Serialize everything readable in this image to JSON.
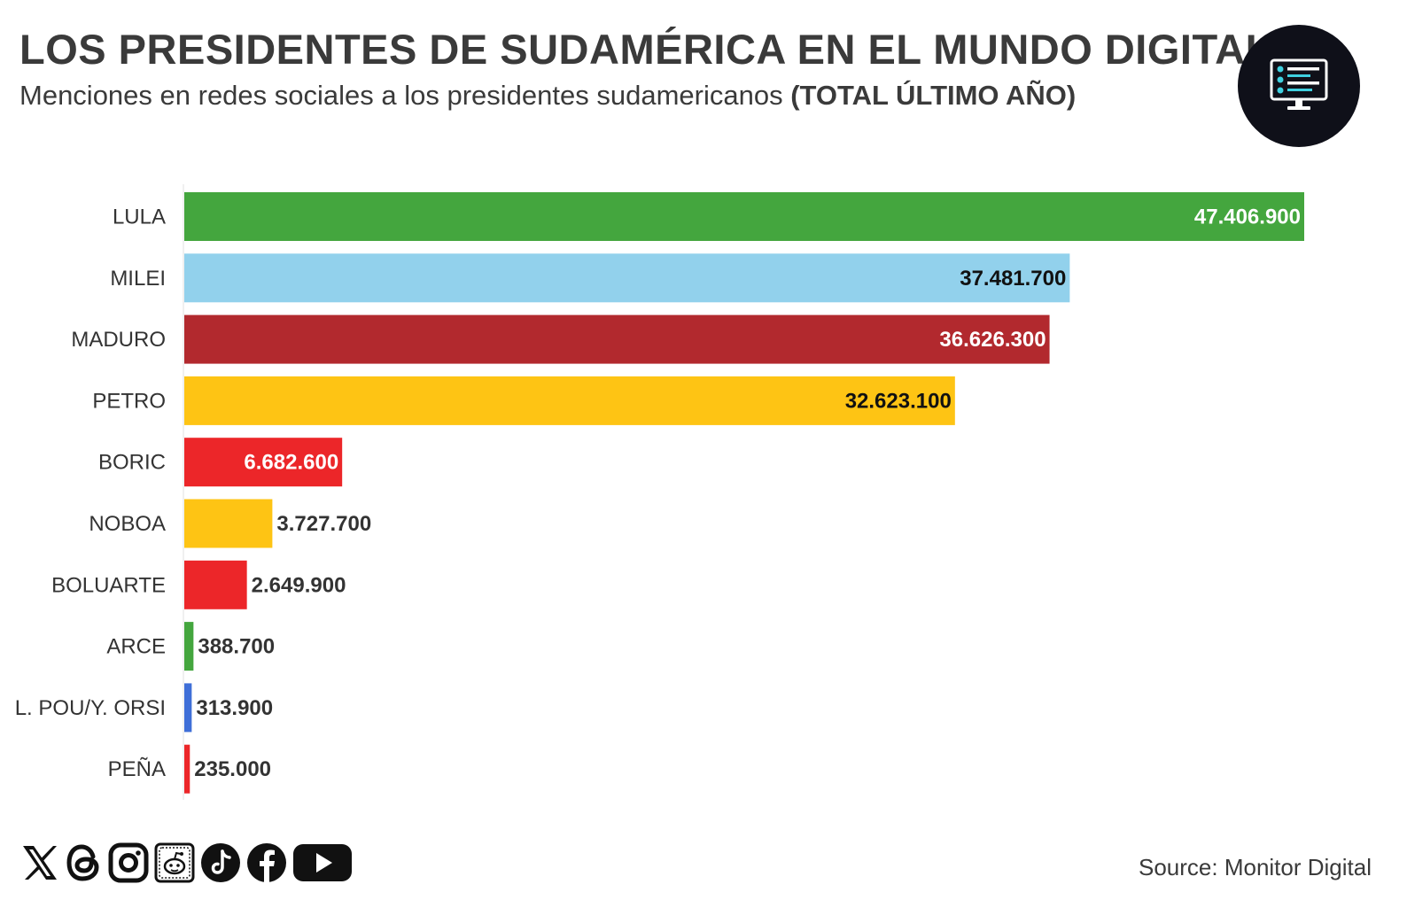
{
  "header": {
    "title": "LOS PRESIDENTES DE SUDAMÉRICA EN EL MUNDO DIGITAL",
    "subtitle_main": "Menciones en redes sociales a los presidentes sudamericanos",
    "subtitle_bold": "(TOTAL ÚLTIMO AÑO)"
  },
  "logo": {
    "icon": "monitor-dashboard-icon"
  },
  "chart_data": {
    "type": "bar",
    "orientation": "horizontal",
    "title": "LOS PRESIDENTES DE SUDAMÉRICA EN EL MUNDO DIGITAL",
    "xlabel": "",
    "ylabel": "",
    "xlim": [
      0,
      47406900
    ],
    "categories": [
      "LULA",
      "MILEI",
      "MADURO",
      "PETRO",
      "BORIC",
      "NOBOA",
      "BOLUARTE",
      "ARCE",
      "L. POU/Y. ORSI",
      "PEÑA"
    ],
    "values": [
      47406900,
      37481700,
      36626300,
      32623100,
      6682600,
      3727700,
      2649900,
      388700,
      313900,
      235000
    ],
    "value_labels": [
      "47.406.900",
      "37.481.700",
      "36.626.300",
      "32.623.100",
      "6.682.600",
      "3.727.700",
      "2.649.900",
      "388.700",
      "313.900",
      "235.000"
    ],
    "colors": [
      "#44a63e",
      "#92d1ec",
      "#b2292e",
      "#fec414",
      "#ec2629",
      "#fec414",
      "#ec2629",
      "#44a63e",
      "#3f6fd8",
      "#ec2629"
    ],
    "label_colors": [
      "#ffffff",
      "#111111",
      "#ffffff",
      "#111111",
      "#ffffff",
      "#333333",
      "#333333",
      "#333333",
      "#333333",
      "#333333"
    ],
    "label_inside": [
      true,
      true,
      true,
      true,
      true,
      false,
      false,
      false,
      false,
      false
    ]
  },
  "social": {
    "icons": [
      "x-icon",
      "threads-icon",
      "instagram-icon",
      "reddit-icon",
      "tiktok-icon",
      "facebook-icon",
      "youtube-icon"
    ]
  },
  "footer": {
    "source": "Source: Monitor Digital"
  }
}
